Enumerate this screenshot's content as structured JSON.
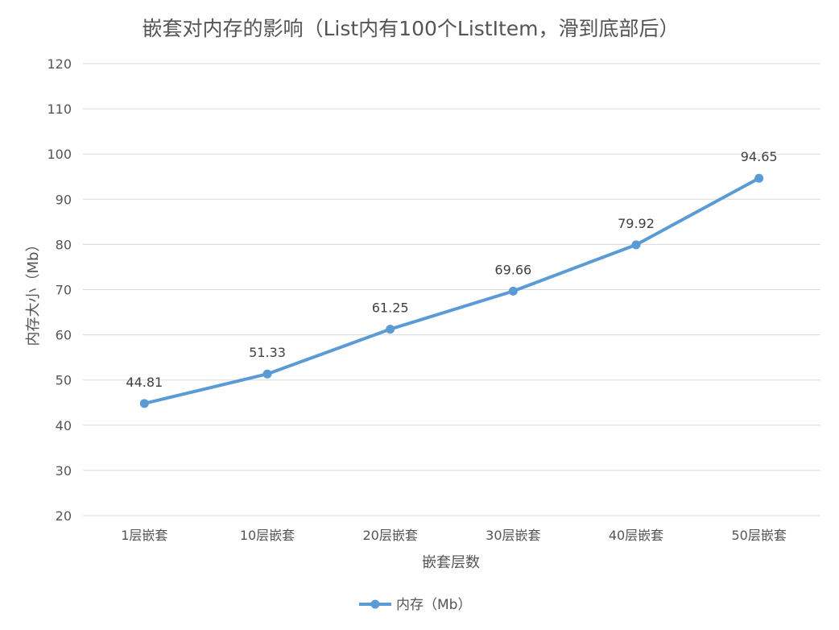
{
  "chart_data": {
    "type": "line",
    "title": "嵌套对内存的影响（List内有100个ListItem，滑到底部后）",
    "xlabel": "嵌套层数",
    "ylabel": "内存大小（Mb）",
    "categories": [
      "1层嵌套",
      "10层嵌套",
      "20层嵌套",
      "30层嵌套",
      "40层嵌套",
      "50层嵌套"
    ],
    "series": [
      {
        "name": "内存（Mb）",
        "values": [
          44.81,
          51.33,
          61.25,
          69.66,
          79.92,
          94.65
        ],
        "color": "#5b9bd5"
      }
    ],
    "ylim": [
      20,
      120
    ],
    "yticks": [
      20,
      30,
      40,
      50,
      60,
      70,
      80,
      90,
      100,
      110,
      120
    ],
    "ytick_labels": [
      "20",
      "30",
      "40",
      "50",
      "60",
      "70",
      "80",
      "90",
      "100",
      "110",
      "120"
    ],
    "data_labels": [
      "44.81",
      "51.33",
      "61.25",
      "69.66",
      "79.92",
      "94.65"
    ],
    "grid": true,
    "legend_position": "bottom"
  }
}
